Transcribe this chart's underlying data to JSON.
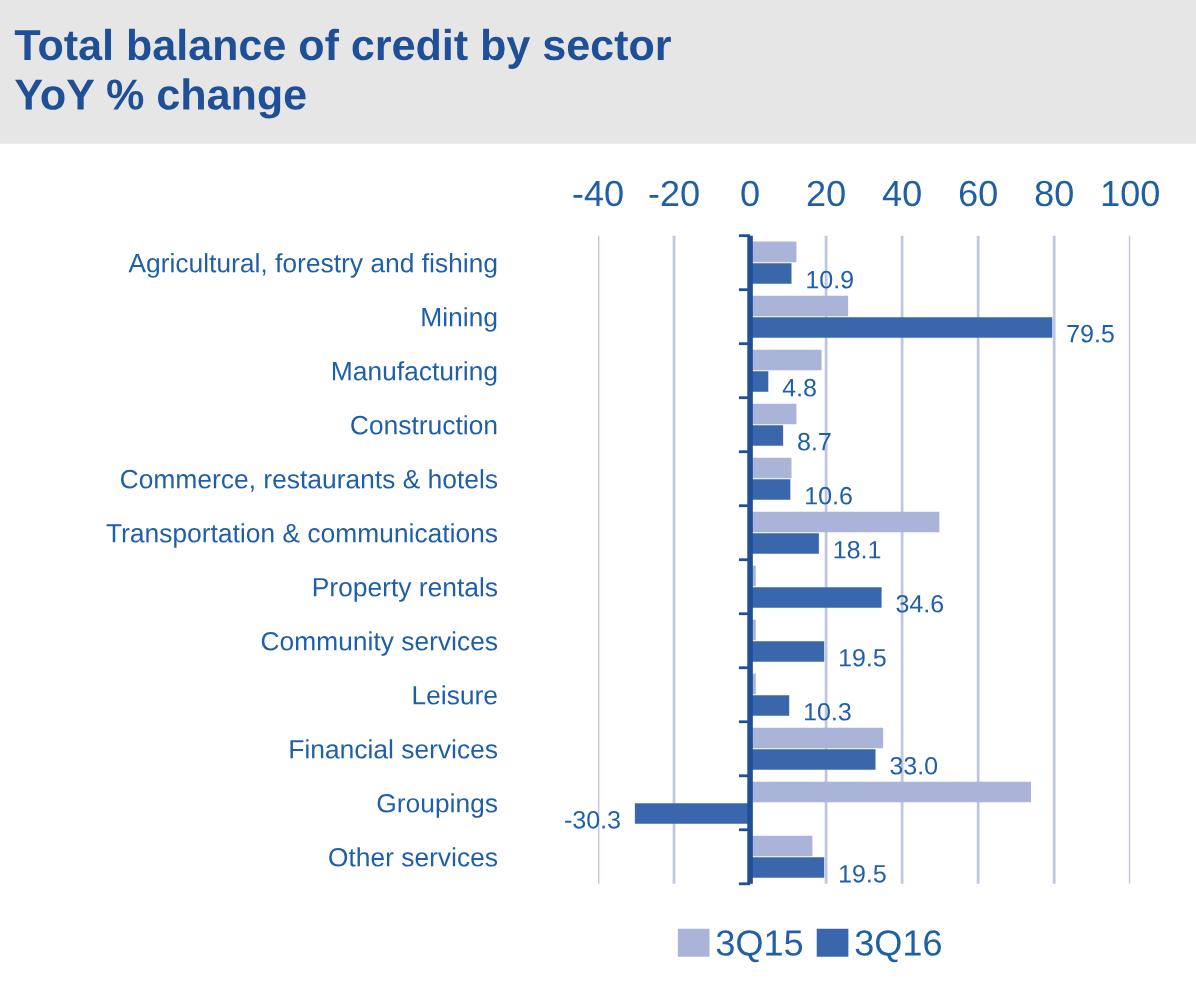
{
  "chart_data": {
    "type": "bar",
    "orientation": "horizontal",
    "title": "Total balance of credit by sector\nYoY % change",
    "categories": [
      "Agricultural, forestry and fishing",
      "Mining",
      "Manufacturing",
      "Construction",
      "Commerce, restaurants & hotels",
      "Transportation & communications",
      "Property rentals",
      "Community services",
      "Leisure",
      "Financial services",
      "Groupings",
      "Other services"
    ],
    "series": [
      {
        "name": "3Q15",
        "color": "#a9b4d8",
        "values": [
          12.2,
          25.8,
          18.8,
          12.2,
          10.9,
          49.8,
          1.5,
          1.5,
          1.5,
          35.0,
          73.9,
          16.4
        ]
      },
      {
        "name": "3Q16",
        "color": "#3a67ab",
        "values": [
          10.9,
          79.5,
          4.8,
          8.7,
          10.6,
          18.1,
          34.6,
          19.5,
          10.3,
          33.0,
          -30.3,
          19.5
        ],
        "value_labels": [
          "10.9",
          "79.5",
          "4.8",
          "8.7",
          "10.6",
          "18.1",
          "34.6",
          "19.5",
          "10.3",
          "33.0",
          "-30.3",
          "19.5"
        ]
      }
    ],
    "xlim": [
      -40,
      100
    ],
    "ref_lines": [
      {
        "axis": "x",
        "value": 0,
        "color": "#1f4f96"
      }
    ],
    "xticks": [
      -40,
      -20,
      0,
      20,
      40,
      60,
      80,
      100
    ],
    "grid": "x",
    "legend": "bottom"
  }
}
